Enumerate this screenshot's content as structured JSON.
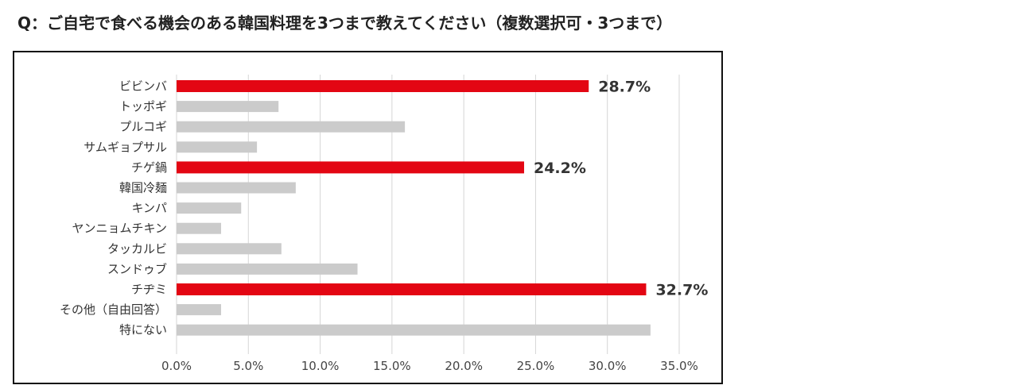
{
  "question": "Q：ご自宅で食べる機会のある韓国料理を3つまで教えてください（複数選択可・3つまで）",
  "chart_data": {
    "type": "bar",
    "orientation": "horizontal",
    "categories": [
      "ビビンバ",
      "トッポギ",
      "プルコギ",
      "サムギョプサル",
      "チゲ鍋",
      "韓国冷麺",
      "キンパ",
      "ヤンニョムチキン",
      "タッカルビ",
      "スンドゥブ",
      "チヂミ",
      "その他（自由回答）",
      "特にない"
    ],
    "values": [
      28.7,
      7.1,
      15.9,
      5.6,
      24.2,
      8.3,
      4.5,
      3.1,
      7.3,
      12.6,
      32.7,
      3.1,
      33.0
    ],
    "data_labels": [
      "28.7%",
      null,
      null,
      null,
      "24.2%",
      null,
      null,
      null,
      null,
      null,
      "32.7%",
      null,
      null
    ],
    "xlim": [
      0,
      35
    ],
    "ticks": [
      "0.0%",
      "5.0%",
      "10.0%",
      "15.0%",
      "20.0%",
      "25.0%",
      "30.0%",
      "35.0%"
    ],
    "grid": "vertical",
    "colors": {
      "highlight": "#e30613",
      "normal": "#cbcbcb",
      "grid": "#d6d6d6"
    },
    "highlight_indices": [
      0,
      4,
      10
    ]
  }
}
